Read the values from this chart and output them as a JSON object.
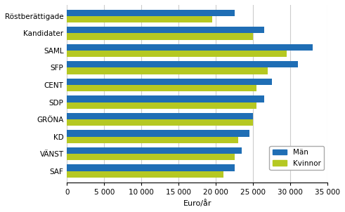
{
  "categories": [
    "Röstberättigade",
    "Kandidater",
    "SAML",
    "SFP",
    "CENT",
    "SDP",
    "GRÖNA",
    "KD",
    "VÄNST",
    "SAF"
  ],
  "man_values": [
    22500,
    26500,
    33000,
    31000,
    27500,
    26500,
    25000,
    24500,
    23500,
    22500
  ],
  "kvinnor_values": [
    19500,
    25000,
    29500,
    27000,
    25500,
    25500,
    25000,
    23000,
    22500,
    21000
  ],
  "color_man": "#1f6eb5",
  "color_kvinnor": "#b5c822",
  "xlabel": "Euro/år",
  "xlim": [
    0,
    35000
  ],
  "xticks": [
    0,
    5000,
    10000,
    15000,
    20000,
    25000,
    30000,
    35000
  ],
  "xticklabels": [
    "0",
    "5 000",
    "10 000",
    "15 000",
    "20 000",
    "25 000",
    "30 000",
    "35 000"
  ],
  "legend_man": "Män",
  "legend_kvinnor": "Kvinnor",
  "grid_color": "#cccccc",
  "background_color": "#ffffff"
}
